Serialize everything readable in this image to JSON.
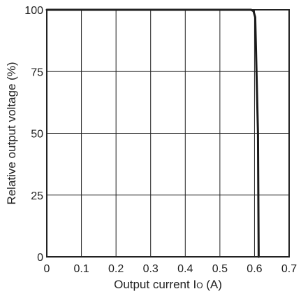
{
  "chart_data": {
    "type": "line",
    "title": "",
    "xlabel": "Output current I",
    "xlabel_subscript": "O",
    "xlabel_unit": " (A)",
    "ylabel": "Relative output voltage (%)",
    "xlim": [
      0,
      0.7
    ],
    "ylim": [
      0,
      100
    ],
    "x_ticks": [
      0,
      0.1,
      0.2,
      0.3,
      0.4,
      0.5,
      0.6,
      0.7
    ],
    "y_ticks": [
      0,
      25,
      50,
      75,
      100
    ],
    "x_tick_labels": [
      "0",
      "0.1",
      "0.2",
      "0.3",
      "0.4",
      "0.5",
      "0.6",
      "0.7"
    ],
    "y_tick_labels": [
      "0",
      "25",
      "50",
      "75",
      "100"
    ],
    "grid": true,
    "legend": "none",
    "colors": {
      "line": "#1a1a1a",
      "grid": "#222222",
      "frame": "#222222"
    },
    "series": [
      {
        "x": [
          0,
          0.58,
          0.59,
          0.597,
          0.6,
          0.602,
          0.61,
          0.612
        ],
        "y": [
          100,
          100,
          100,
          99.5,
          98,
          97,
          50,
          0
        ]
      }
    ]
  }
}
